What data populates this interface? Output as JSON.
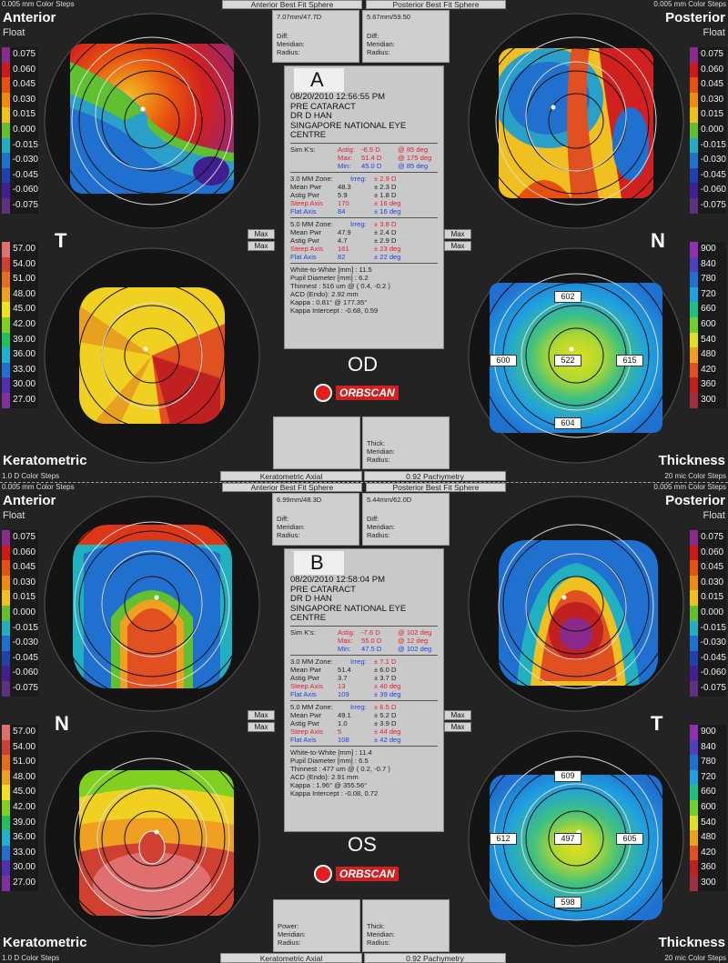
{
  "scales": {
    "float": [
      "0.075",
      "0.060",
      "0.045",
      "0.030",
      "0.015",
      "0.000",
      "-0.015",
      "-0.030",
      "-0.045",
      "-0.060",
      "-0.075"
    ],
    "kerato": [
      "57.00",
      "54.00",
      "51.00",
      "48.00",
      "45.00",
      "42.00",
      "39.00",
      "36.00",
      "33.00",
      "30.00",
      "27.00"
    ],
    "thick": [
      "900",
      "840",
      "780",
      "720",
      "660",
      "600",
      "540",
      "480",
      "420",
      "360",
      "300"
    ],
    "float_colors": [
      "#8a2a8a",
      "#d01818",
      "#e85010",
      "#f08a10",
      "#f0c020",
      "#60c030",
      "#20b0c0",
      "#2070d0",
      "#2040b0",
      "#402090",
      "#603080"
    ],
    "kerato_colors": [
      "#e07070",
      "#d04030",
      "#e07020",
      "#f0a020",
      "#f0e020",
      "#80d020",
      "#20c060",
      "#20b0d0",
      "#2070d0",
      "#5030b0",
      "#8030a0"
    ],
    "thick_colors": [
      "#9030b0",
      "#5040c0",
      "#2070d0",
      "#20a0e0",
      "#20c080",
      "#70d030",
      "#e0e020",
      "#f0a020",
      "#e05020",
      "#c02020",
      "#a03040"
    ]
  },
  "panels": [
    {
      "anterior": "Anterior",
      "float": "Float",
      "posterior": "Posterior",
      "float_r": "Float",
      "keratometric": "Keratometric",
      "thickness": "Thickness",
      "steps_tl": "0.005 mm Color Steps",
      "steps_tr": "0.005 mm Color Steps",
      "steps_bl": "1.0 D Color Steps",
      "steps_br": "20 mic Color Steps",
      "left_letter": "T",
      "right_letter": "N",
      "top_left_bar": "Anterior Best Fit Sphere",
      "top_right_bar": "Posterior Best Fit Sphere",
      "ant_bfs": "7.07mm/47.7D",
      "post_bfs": "5.67mm/59.50",
      "diff": "Diff:",
      "meridian": "Meridian:",
      "radius": "Radius:",
      "letter": "A",
      "datetime": "08/20/2010 12:56:55 PM",
      "l1": "PRE CATARACT",
      "l2": "DR D HAN",
      "l3": "SINGAPORE NATIONAL  EYE CENTRE",
      "simk": "Sim K's:",
      "astig": "Astig:",
      "astig_v": "-6.5 D",
      "astig_d": "@ 85 deg",
      "max": "Max:",
      "max_v": "51.4 D",
      "max_d": "@ 175 deg",
      "min": "Min:",
      "min_v": "45.0 D",
      "min_d": "@ 85 deg",
      "z3": "3.0 MM Zone:",
      "irreg": "Irreg:",
      "z3_irreg": "± 2.9 D",
      "mean": "Mean Pwr",
      "z3_mean": "48.3",
      "z3_mean_pm": "± 2.3 D",
      "astigp": "Astig Pwr",
      "z3_astig": "5.9",
      "z3_astig_pm": "± 1.8 D",
      "steep": "Steep Axis",
      "z3_steep": "170",
      "z3_steep_pm": "± 16 deg",
      "flat": "Flat Axis",
      "z3_flat": "84",
      "z3_flat_pm": "± 16 deg",
      "z5": "5.0 MM Zone:",
      "z5_irreg": "± 3.8 D",
      "z5_mean": "47.9",
      "z5_mean_pm": "± 2.4 D",
      "z5_astig": "4.7",
      "z5_astig_pm": "± 2.9 D",
      "z5_steep": "161",
      "z5_steep_pm": "± 23 deg",
      "z5_flat": "82",
      "z5_flat_pm": "± 22 deg",
      "wtw": "White-to-White [mm] : 11.5",
      "pupil": "Pupil Diameter [mm] : 6.2",
      "thinnest": "Thinnest : 516 um @ ( 0.4, -0.2 )",
      "acd": "ACD (Endo): 2.92 mm",
      "kappa": "Kappa : 0.81° @ 177.35°",
      "kappa_int": "Kappa Intercept : -0.68, 0.59",
      "eye": "OD",
      "orbscan": "ORBSCAN",
      "thick_label": "Thick:",
      "bot_left": "Keratometric Axial",
      "bot_right": "0.92 Pachymetry",
      "max_btn": "Max",
      "thk_top": "602",
      "thk_left": "600",
      "thk_center": "522",
      "thk_right": "615",
      "thk_bottom": "604"
    },
    {
      "anterior": "Anterior",
      "float": "Float",
      "posterior": "Posterior",
      "float_r": "Float",
      "keratometric": "Keratometric",
      "thickness": "Thickness",
      "steps_tl": "0.005 mm Color Steps",
      "steps_tr": "0.005 mm Color Steps",
      "steps_bl": "1.0 D Color Steps",
      "steps_br": "20 mic Color Steps",
      "left_letter": "N",
      "right_letter": "T",
      "top_left_bar": "Anterior Best Fit Sphere",
      "top_right_bar": "Posterior Best Fit Sphere",
      "ant_bfs": "6.99mm/48.3D",
      "post_bfs": "5.44mm/62.0D",
      "diff": "Diff:",
      "meridian": "Meridian:",
      "radius": "Radius:",
      "letter": "B",
      "datetime": "08/20/2010 12:58:04 PM",
      "l1": "PRE CATARACT",
      "l2": "DR D HAN",
      "l3": "SINGAPORE NATIONAL  EYE CENTRE",
      "simk": "Sim K's:",
      "astig": "Astig:",
      "astig_v": "-7.6 D",
      "astig_d": "@ 102 deg",
      "max": "Max:",
      "max_v": "55.0 D",
      "max_d": "@ 12 deg",
      "min": "Min:",
      "min_v": "47.5 D",
      "min_d": "@ 102 deg",
      "z3": "3.0 MM Zone:",
      "irreg": "Irreg:",
      "z3_irreg": "± 7.1 D",
      "mean": "Mean Pwr",
      "z3_mean": "51.4",
      "z3_mean_pm": "± 6.0 D",
      "astigp": "Astig Pwr",
      "z3_astig": "3.7",
      "z3_astig_pm": "± 3.7 D",
      "steep": "Steep Axis",
      "z3_steep": "13",
      "z3_steep_pm": "± 40 deg",
      "flat": "Flat Axis",
      "z3_flat": "109",
      "z3_flat_pm": "± 39 deg",
      "z5": "5.0 MM Zone:",
      "z5_irreg": "± 6.5 D",
      "z5_mean": "49.1",
      "z5_mean_pm": "± 5.2 D",
      "z5_astig": "1.0",
      "z5_astig_pm": "± 3.9 D",
      "z5_steep": "5",
      "z5_steep_pm": "± 44 deg",
      "z5_flat": "108",
      "z5_flat_pm": "± 42 deg",
      "wtw": "White-to-White [mm] : 11.4",
      "pupil": "Pupil Diameter [mm] : 6.5",
      "thinnest": "Thinnest : 477 um @ ( 0.2, -0.7 )",
      "acd": "ACD (Endo): 2.91 mm",
      "kappa": "Kappa : 1.96° @ 355.56°",
      "kappa_int": "Kappa Intercept : -0.08, 0.72",
      "eye": "OS",
      "orbscan": "ORBSCAN",
      "thick_label": "Thick:",
      "power": "Power:",
      "bot_left": "Keratometric Axial",
      "bot_right": "0.92 Pachymetry",
      "max_btn": "Max",
      "thk_top": "609",
      "thk_left": "612",
      "thk_center": "497",
      "thk_right": "605",
      "thk_bottom": "598"
    }
  ]
}
